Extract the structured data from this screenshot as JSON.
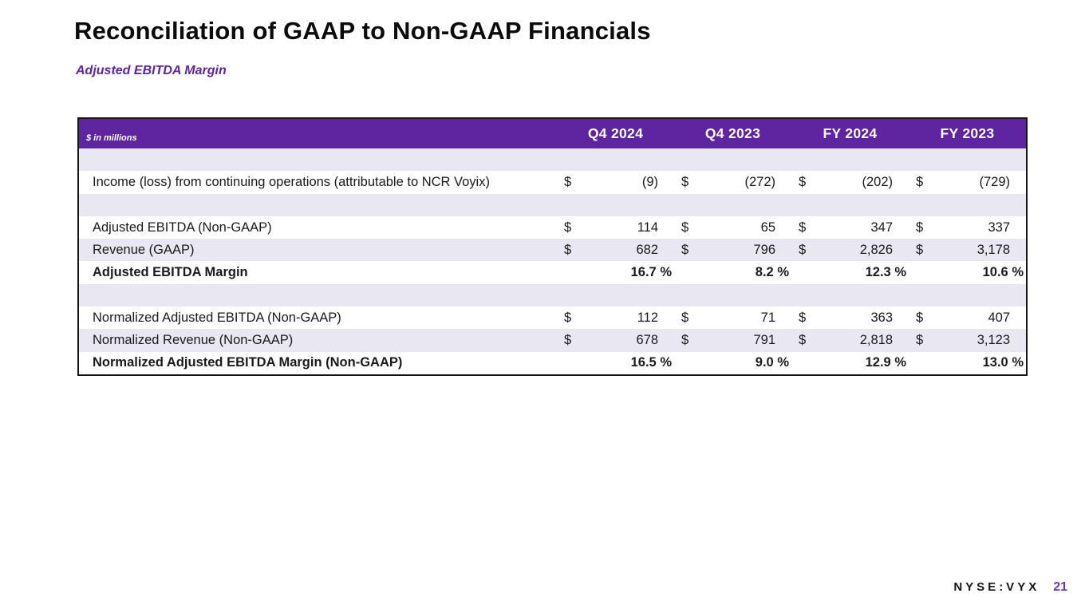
{
  "slide": {
    "title": "Reconciliation of GAAP to Non-GAAP Financials",
    "subtitle": "Adjusted EBITDA Margin"
  },
  "table": {
    "unit_label": "$ in millions",
    "currency_symbol": "$",
    "columns": [
      "Q4 2024",
      "Q4 2023",
      "FY 2024",
      "FY 2023"
    ],
    "rows": [
      {
        "spacer": true,
        "shade": true
      },
      {
        "label": "Income (loss) from continuing operations (attributable to NCR Voyix)",
        "currency": true,
        "values": [
          "(9)",
          "(272)",
          "(202)",
          "(729)"
        ],
        "bold": false,
        "shade": false
      },
      {
        "spacer": true,
        "shade": true
      },
      {
        "label": "Adjusted EBITDA (Non-GAAP)",
        "currency": true,
        "values": [
          "114",
          "65",
          "347",
          "337"
        ],
        "bold": false,
        "shade": false
      },
      {
        "label": "Revenue (GAAP)",
        "currency": true,
        "values": [
          "682",
          "796",
          "2,826",
          "3,178"
        ],
        "bold": false,
        "shade": true
      },
      {
        "label": "Adjusted EBITDA Margin",
        "currency": false,
        "percent": true,
        "values": [
          "16.7 %",
          "8.2 %",
          "12.3 %",
          "10.6 %"
        ],
        "bold": true,
        "shade": false
      },
      {
        "spacer": true,
        "shade": true
      },
      {
        "label": "Normalized Adjusted EBITDA (Non-GAAP)",
        "currency": true,
        "values": [
          "112",
          "71",
          "363",
          "407"
        ],
        "bold": false,
        "shade": false
      },
      {
        "label": "Normalized Revenue (Non-GAAP)",
        "currency": true,
        "values": [
          "678",
          "791",
          "2,818",
          "3,123"
        ],
        "bold": false,
        "shade": true
      },
      {
        "label": "Normalized Adjusted EBITDA Margin (Non-GAAP)",
        "currency": false,
        "percent": true,
        "values": [
          "16.5 %",
          "9.0 %",
          "12.9 %",
          "13.0 %"
        ],
        "bold": true,
        "shade": false
      }
    ]
  },
  "footer": {
    "ticker": "NYSE:VYX",
    "page_number": "21"
  },
  "colors": {
    "brand_purple": "#5F249F",
    "row_alt": "#E9E7F2",
    "page_number_purple": "#6A35B5"
  }
}
